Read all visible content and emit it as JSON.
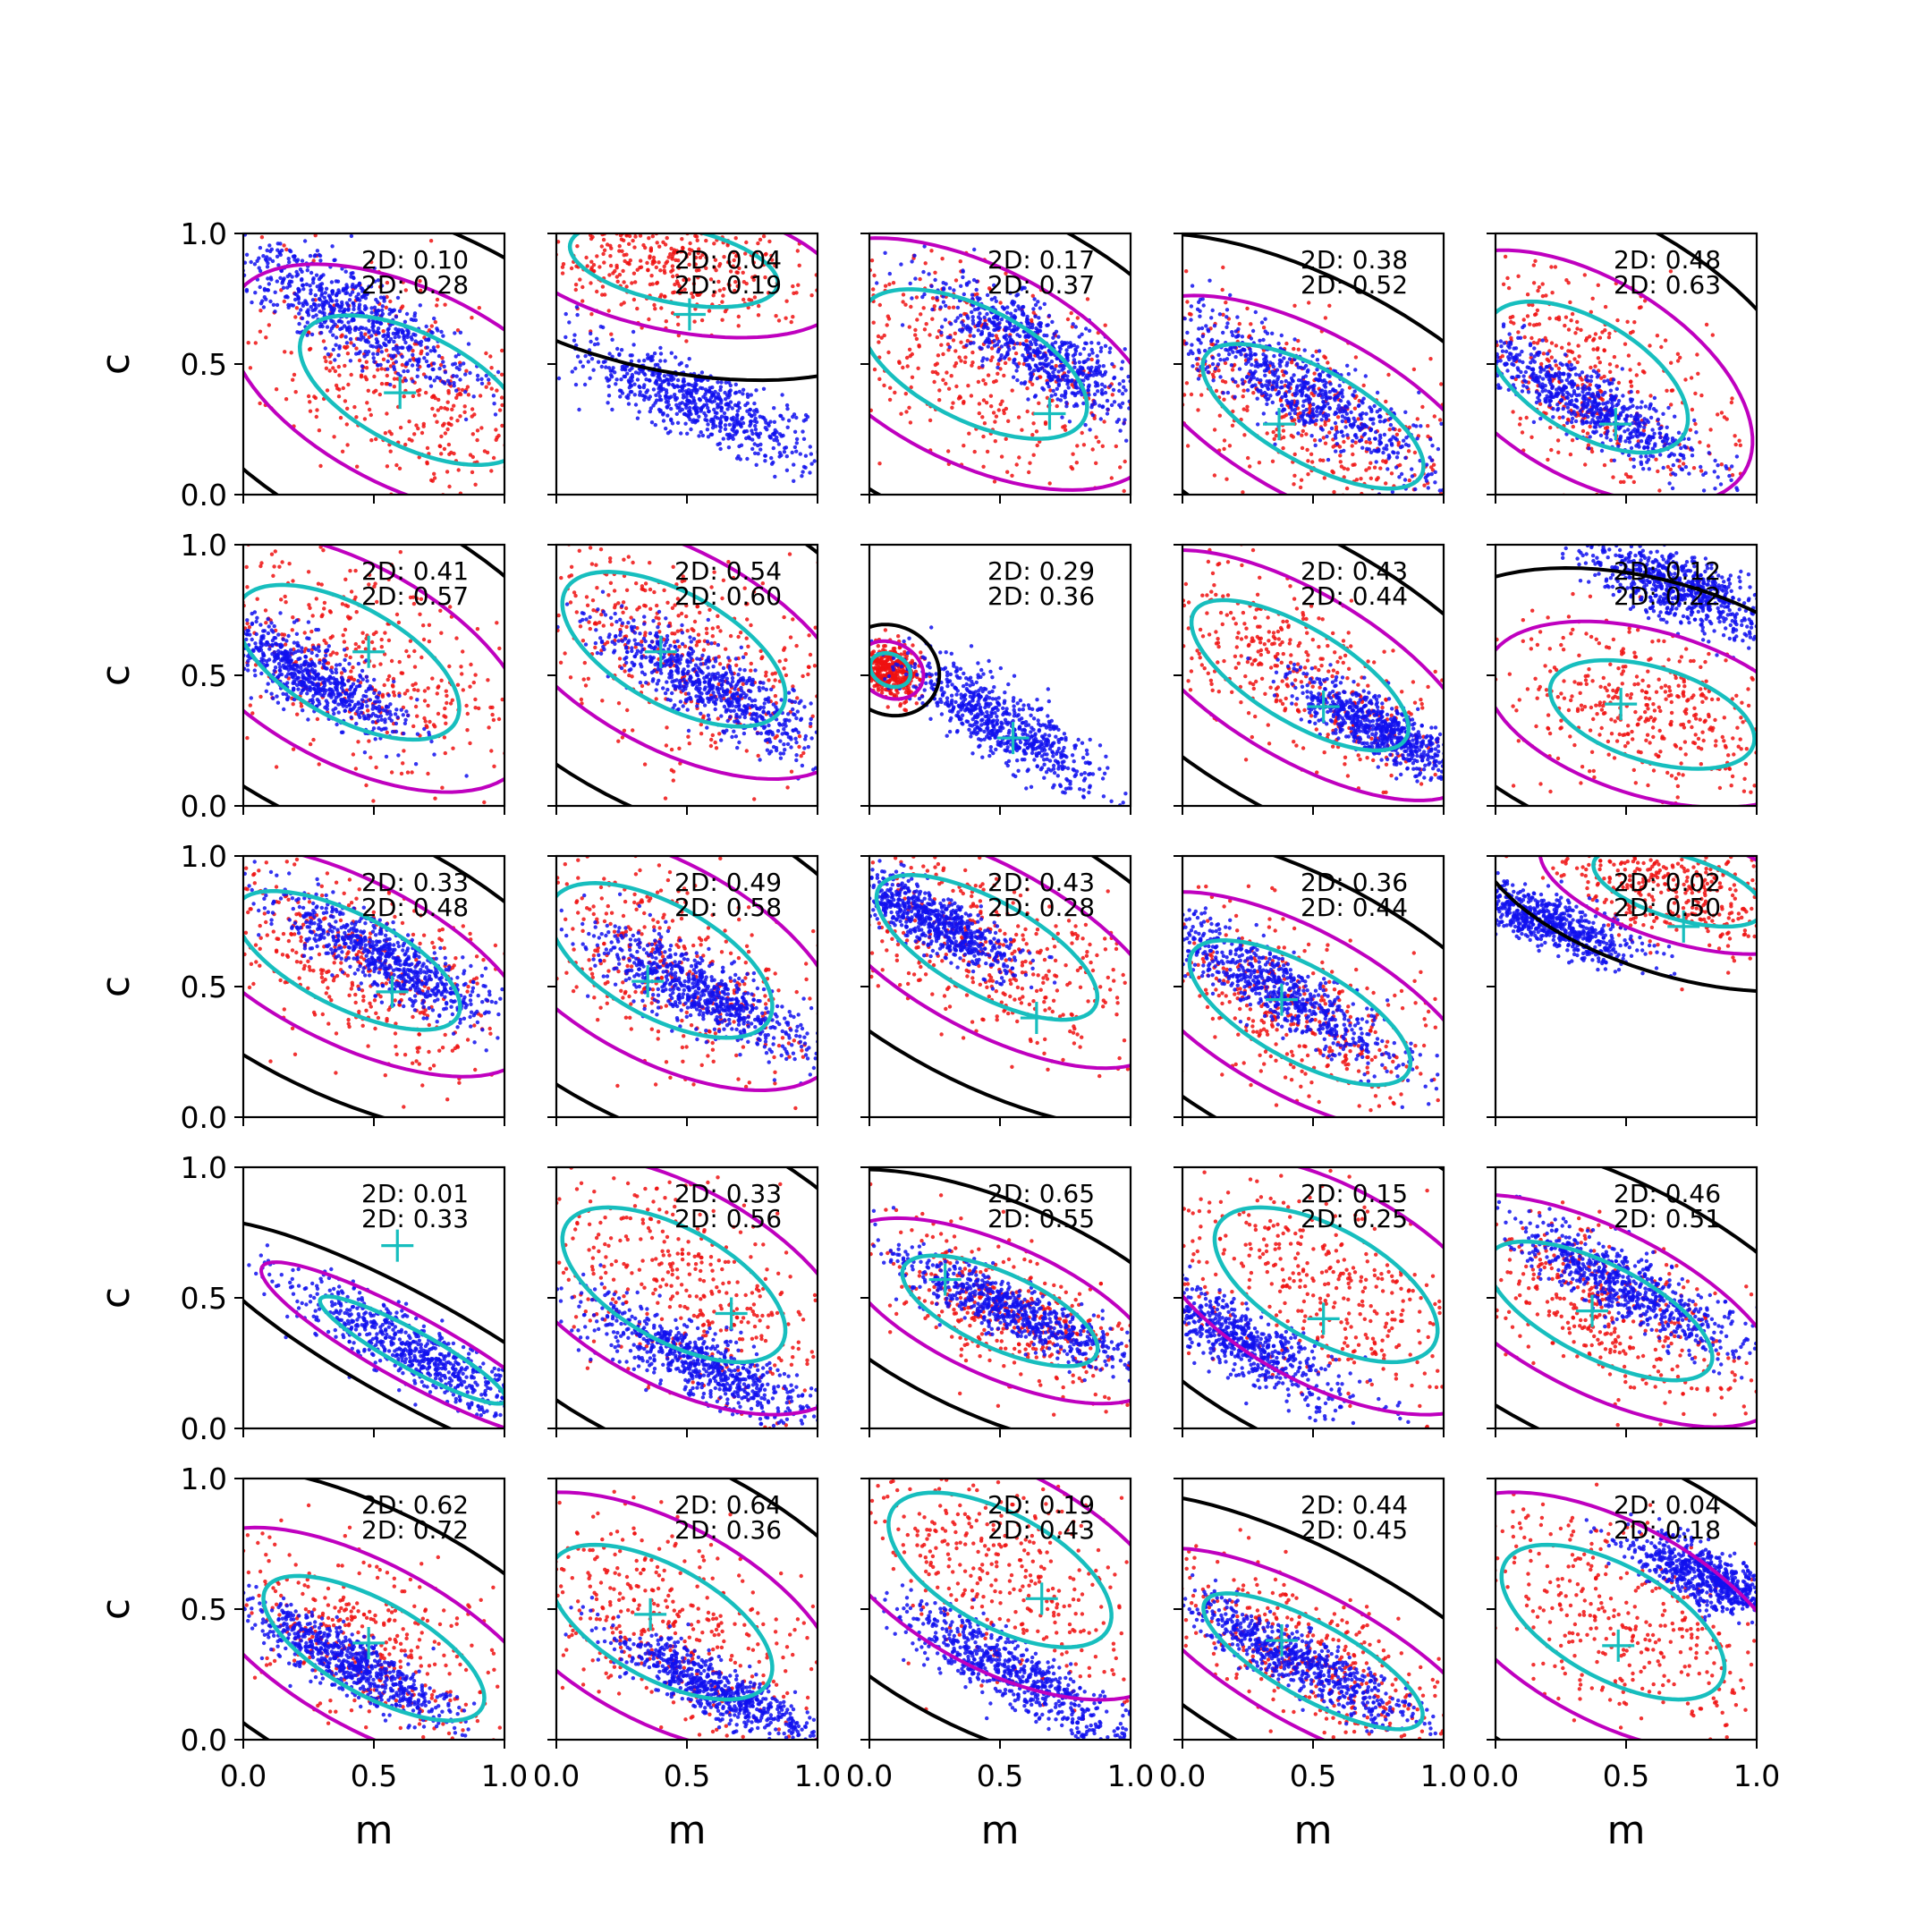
{
  "figure": {
    "xlabel": "m",
    "ylabel": "c",
    "xlim": [
      0,
      1
    ],
    "ylim": [
      0,
      1
    ],
    "tick_values": [
      0.0,
      0.5,
      1.0
    ],
    "tick_labels": [
      "0.0",
      "0.5",
      "1.0"
    ],
    "rows": 5,
    "cols": 5
  },
  "colors": {
    "blue_scatter": "#1010ee",
    "red_scatter": "#ee1010",
    "black_contour": "#000000",
    "magenta_contour": "#bf00bf",
    "cyan_contour": "#17bebe",
    "cyan_marker": "#17bebe"
  },
  "chart_data": [
    {
      "type": "scatter",
      "stats": [
        "2D: 0.10",
        "2D: 0.28"
      ],
      "blue": {
        "cx": 0.4,
        "cy": 0.7,
        "slope": -0.55,
        "spread_m": 0.28,
        "spread_c": 0.07
      },
      "red": {
        "cx": 0.65,
        "cy": 0.4,
        "slope": -0.5,
        "spread_m": 0.35,
        "spread_c": 0.18
      },
      "marker": [
        0.6,
        0.39
      ]
    },
    {
      "type": "scatter",
      "stats": [
        "2D: 0.04",
        "2D: 0.19"
      ],
      "blue": {
        "cx": 0.55,
        "cy": 0.35,
        "slope": -0.45,
        "spread_m": 0.26,
        "spread_c": 0.06
      },
      "red": {
        "cx": 0.45,
        "cy": 0.88,
        "slope": -0.2,
        "spread_m": 0.3,
        "spread_c": 0.12
      },
      "marker": [
        0.51,
        0.69
      ]
    },
    {
      "type": "scatter",
      "stats": [
        "2D: 0.17",
        "2D: 0.37"
      ],
      "blue": {
        "cx": 0.65,
        "cy": 0.55,
        "slope": -0.6,
        "spread_m": 0.24,
        "spread_c": 0.07
      },
      "red": {
        "cx": 0.4,
        "cy": 0.5,
        "slope": -0.5,
        "spread_m": 0.35,
        "spread_c": 0.18
      },
      "marker": [
        0.69,
        0.31
      ]
    },
    {
      "type": "scatter",
      "stats": [
        "2D: 0.38",
        "2D: 0.52"
      ],
      "blue": {
        "cx": 0.45,
        "cy": 0.4,
        "slope": -0.6,
        "spread_m": 0.3,
        "spread_c": 0.07
      },
      "red": {
        "cx": 0.5,
        "cy": 0.3,
        "slope": -0.55,
        "spread_m": 0.35,
        "spread_c": 0.15
      },
      "marker": [
        0.37,
        0.27
      ]
    },
    {
      "type": "scatter",
      "stats": [
        "2D: 0.48",
        "2D: 0.63"
      ],
      "blue": {
        "cx": 0.35,
        "cy": 0.35,
        "slope": -0.55,
        "spread_m": 0.26,
        "spread_c": 0.06
      },
      "red": {
        "cx": 0.35,
        "cy": 0.45,
        "slope": -0.6,
        "spread_m": 0.32,
        "spread_c": 0.18
      },
      "marker": [
        0.46,
        0.27
      ]
    },
    {
      "type": "scatter",
      "stats": [
        "2D: 0.41",
        "2D: 0.57"
      ],
      "blue": {
        "cx": 0.25,
        "cy": 0.5,
        "slope": -0.55,
        "spread_m": 0.22,
        "spread_c": 0.06
      },
      "red": {
        "cx": 0.4,
        "cy": 0.55,
        "slope": -0.55,
        "spread_m": 0.35,
        "spread_c": 0.18
      },
      "marker": [
        0.48,
        0.59
      ]
    },
    {
      "type": "scatter",
      "stats": [
        "2D: 0.54",
        "2D: 0.60"
      ],
      "blue": {
        "cx": 0.6,
        "cy": 0.45,
        "slope": -0.55,
        "spread_m": 0.26,
        "spread_c": 0.06
      },
      "red": {
        "cx": 0.45,
        "cy": 0.6,
        "slope": -0.55,
        "spread_m": 0.35,
        "spread_c": 0.18
      },
      "marker": [
        0.4,
        0.59
      ]
    },
    {
      "type": "scatter",
      "stats": [
        "2D: 0.29",
        "2D: 0.36"
      ],
      "blue": {
        "cx": 0.5,
        "cy": 0.32,
        "slope": -0.6,
        "spread_m": 0.22,
        "spread_c": 0.06
      },
      "red": {
        "cx": 0.08,
        "cy": 0.52,
        "slope": -0.5,
        "spread_m": 0.06,
        "spread_c": 0.05
      },
      "marker": [
        0.55,
        0.26
      ]
    },
    {
      "type": "scatter",
      "stats": [
        "2D: 0.43",
        "2D: 0.44"
      ],
      "blue": {
        "cx": 0.75,
        "cy": 0.3,
        "slope": -0.55,
        "spread_m": 0.18,
        "spread_c": 0.05
      },
      "red": {
        "cx": 0.45,
        "cy": 0.5,
        "slope": -0.6,
        "spread_m": 0.35,
        "spread_c": 0.15
      },
      "marker": [
        0.54,
        0.38
      ]
    },
    {
      "type": "scatter",
      "stats": [
        "2D: 0.12",
        "2D: 0.22"
      ],
      "blue": {
        "cx": 0.72,
        "cy": 0.82,
        "slope": -0.4,
        "spread_m": 0.2,
        "spread_c": 0.06
      },
      "red": {
        "cx": 0.6,
        "cy": 0.35,
        "slope": -0.3,
        "spread_m": 0.3,
        "spread_c": 0.15
      },
      "marker": [
        0.48,
        0.39
      ]
    },
    {
      "type": "scatter",
      "stats": [
        "2D: 0.33",
        "2D: 0.48"
      ],
      "blue": {
        "cx": 0.55,
        "cy": 0.6,
        "slope": -0.55,
        "spread_m": 0.24,
        "spread_c": 0.06
      },
      "red": {
        "cx": 0.4,
        "cy": 0.6,
        "slope": -0.5,
        "spread_m": 0.35,
        "spread_c": 0.15
      },
      "marker": [
        0.57,
        0.48
      ]
    },
    {
      "type": "scatter",
      "stats": [
        "2D: 0.49",
        "2D: 0.58"
      ],
      "blue": {
        "cx": 0.55,
        "cy": 0.48,
        "slope": -0.55,
        "spread_m": 0.24,
        "spread_c": 0.06
      },
      "red": {
        "cx": 0.4,
        "cy": 0.6,
        "slope": -0.55,
        "spread_m": 0.35,
        "spread_c": 0.18
      },
      "marker": [
        0.35,
        0.52
      ]
    },
    {
      "type": "scatter",
      "stats": [
        "2D: 0.43",
        "2D: 0.28"
      ],
      "blue": {
        "cx": 0.25,
        "cy": 0.75,
        "slope": -0.55,
        "spread_m": 0.18,
        "spread_c": 0.05
      },
      "red": {
        "cx": 0.45,
        "cy": 0.65,
        "slope": -0.55,
        "spread_m": 0.35,
        "spread_c": 0.15
      },
      "marker": [
        0.64,
        0.38
      ]
    },
    {
      "type": "scatter",
      "stats": [
        "2D: 0.36",
        "2D: 0.44"
      ],
      "blue": {
        "cx": 0.35,
        "cy": 0.5,
        "slope": -0.6,
        "spread_m": 0.28,
        "spread_c": 0.06
      },
      "red": {
        "cx": 0.45,
        "cy": 0.4,
        "slope": -0.55,
        "spread_m": 0.35,
        "spread_c": 0.15
      },
      "marker": [
        0.38,
        0.45
      ]
    },
    {
      "type": "scatter",
      "stats": [
        "2D: 0.02",
        "2D: 0.50"
      ],
      "blue": {
        "cx": 0.2,
        "cy": 0.75,
        "slope": -0.4,
        "spread_m": 0.18,
        "spread_c": 0.05
      },
      "red": {
        "cx": 0.7,
        "cy": 0.88,
        "slope": -0.3,
        "spread_m": 0.25,
        "spread_c": 0.1
      },
      "marker": [
        0.72,
        0.73
      ]
    },
    {
      "type": "scatter",
      "stats": [
        "2D: 0.01",
        "2D: 0.33"
      ],
      "blue": {
        "cx": 0.65,
        "cy": 0.3,
        "slope": -0.55,
        "spread_m": 0.3,
        "spread_c": 0.06
      },
      "red": {
        "cx": 0.5,
        "cy": 0.6,
        "slope": -0.5,
        "spread_m": 0.0,
        "spread_c": 0.0
      },
      "marker": [
        0.59,
        0.7
      ]
    },
    {
      "type": "scatter",
      "stats": [
        "2D: 0.33",
        "2D: 0.56"
      ],
      "blue": {
        "cx": 0.55,
        "cy": 0.25,
        "slope": -0.5,
        "spread_m": 0.26,
        "spread_c": 0.06
      },
      "red": {
        "cx": 0.45,
        "cy": 0.55,
        "slope": -0.55,
        "spread_m": 0.35,
        "spread_c": 0.18
      },
      "marker": [
        0.67,
        0.44
      ]
    },
    {
      "type": "scatter",
      "stats": [
        "2D: 0.65",
        "2D: 0.55"
      ],
      "blue": {
        "cx": 0.55,
        "cy": 0.45,
        "slope": -0.45,
        "spread_m": 0.26,
        "spread_c": 0.05
      },
      "red": {
        "cx": 0.5,
        "cy": 0.45,
        "slope": -0.45,
        "spread_m": 0.3,
        "spread_c": 0.12
      },
      "marker": [
        0.29,
        0.57
      ]
    },
    {
      "type": "scatter",
      "stats": [
        "2D: 0.15",
        "2D: 0.25"
      ],
      "blue": {
        "cx": 0.2,
        "cy": 0.35,
        "slope": -0.55,
        "spread_m": 0.24,
        "spread_c": 0.06
      },
      "red": {
        "cx": 0.55,
        "cy": 0.55,
        "slope": -0.55,
        "spread_m": 0.35,
        "spread_c": 0.18
      },
      "marker": [
        0.54,
        0.42
      ]
    },
    {
      "type": "scatter",
      "stats": [
        "2D: 0.46",
        "2D: 0.51"
      ],
      "blue": {
        "cx": 0.5,
        "cy": 0.55,
        "slope": -0.55,
        "spread_m": 0.26,
        "spread_c": 0.06
      },
      "red": {
        "cx": 0.4,
        "cy": 0.45,
        "slope": -0.5,
        "spread_m": 0.35,
        "spread_c": 0.15
      },
      "marker": [
        0.37,
        0.45
      ]
    },
    {
      "type": "scatter",
      "stats": [
        "2D: 0.62",
        "2D: 0.72"
      ],
      "blue": {
        "cx": 0.4,
        "cy": 0.3,
        "slope": -0.55,
        "spread_m": 0.24,
        "spread_c": 0.05
      },
      "red": {
        "cx": 0.5,
        "cy": 0.35,
        "slope": -0.55,
        "spread_m": 0.35,
        "spread_c": 0.15
      },
      "marker": [
        0.48,
        0.37
      ]
    },
    {
      "type": "scatter",
      "stats": [
        "2D: 0.64",
        "2D: 0.36"
      ],
      "blue": {
        "cx": 0.6,
        "cy": 0.2,
        "slope": -0.5,
        "spread_m": 0.24,
        "spread_c": 0.05
      },
      "red": {
        "cx": 0.4,
        "cy": 0.45,
        "slope": -0.55,
        "spread_m": 0.35,
        "spread_c": 0.18
      },
      "marker": [
        0.36,
        0.48
      ]
    },
    {
      "type": "scatter",
      "stats": [
        "2D: 0.19",
        "2D: 0.43"
      ],
      "blue": {
        "cx": 0.55,
        "cy": 0.25,
        "slope": -0.6,
        "spread_m": 0.28,
        "spread_c": 0.06
      },
      "red": {
        "cx": 0.5,
        "cy": 0.65,
        "slope": -0.55,
        "spread_m": 0.35,
        "spread_c": 0.18
      },
      "marker": [
        0.66,
        0.54
      ]
    },
    {
      "type": "scatter",
      "stats": [
        "2D: 0.44",
        "2D: 0.45"
      ],
      "blue": {
        "cx": 0.45,
        "cy": 0.3,
        "slope": -0.55,
        "spread_m": 0.28,
        "spread_c": 0.05
      },
      "red": {
        "cx": 0.5,
        "cy": 0.3,
        "slope": -0.55,
        "spread_m": 0.35,
        "spread_c": 0.12
      },
      "marker": [
        0.38,
        0.38
      ]
    },
    {
      "type": "scatter",
      "stats": [
        "2D: 0.04",
        "2D: 0.18"
      ],
      "blue": {
        "cx": 0.82,
        "cy": 0.62,
        "slope": -0.45,
        "spread_m": 0.16,
        "spread_c": 0.05
      },
      "red": {
        "cx": 0.45,
        "cy": 0.45,
        "slope": -0.55,
        "spread_m": 0.35,
        "spread_c": 0.18
      },
      "marker": [
        0.47,
        0.36
      ]
    }
  ]
}
